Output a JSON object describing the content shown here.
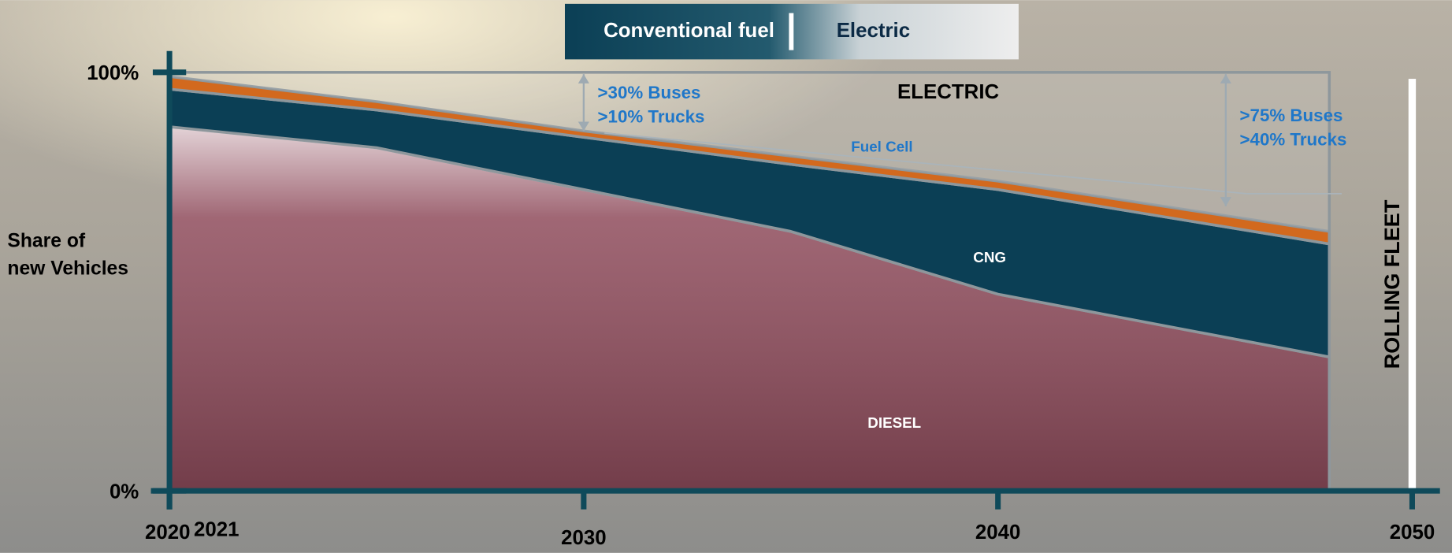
{
  "chart_data": {
    "type": "stacked-area",
    "header_legend": [
      "Conventional fuel",
      "Electric"
    ],
    "y_label": [
      "Share  of",
      "new Vehicles"
    ],
    "side_label": "ROLLING  FLEET",
    "x": [
      2020,
      2025,
      2030,
      2035,
      2040,
      2048
    ],
    "series": [
      {
        "name": "DIESEL",
        "color": "#8f4c5c",
        "values": [
          87,
          82,
          72,
          62,
          47,
          32
        ]
      },
      {
        "name": "CNG",
        "color": "#0b3f55",
        "values": [
          9,
          9,
          12.5,
          16,
          25,
          27
        ]
      },
      {
        "name": "Fuel Cell",
        "color": "#d2691e",
        "values": [
          3,
          2,
          1.5,
          2,
          2,
          3
        ]
      },
      {
        "name": "ELECTRIC",
        "color": "#f0f0f0",
        "values": [
          1,
          7,
          14,
          20,
          26,
          38
        ]
      }
    ],
    "annotations": [
      {
        "lines": [
          ">30% Buses",
          ">10% Trucks"
        ],
        "x": 2030
      },
      {
        "lines": [
          ">75% Buses",
          ">40% Trucks"
        ],
        "x": 2045.5
      }
    ],
    "xlim": [
      2020,
      2050
    ],
    "ylim": [
      0,
      100
    ],
    "xticks": [
      2020,
      2021,
      2030,
      2040,
      2050
    ],
    "yticks": [
      {
        "value": 0,
        "label": "0%"
      },
      {
        "value": 100,
        "label": "100%"
      }
    ]
  }
}
